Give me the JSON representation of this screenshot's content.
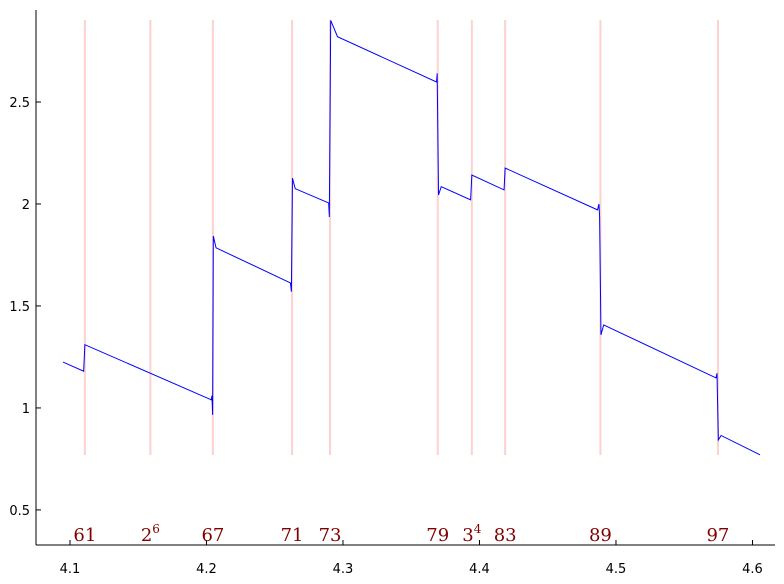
{
  "chart_data": {
    "type": "line",
    "x": [
      4.0949,
      4.11,
      4.1109,
      4.2035,
      4.204,
      4.2045,
      4.205,
      4.207,
      4.2615,
      4.2622,
      4.263,
      4.265,
      4.2895,
      4.29,
      4.291,
      4.296,
      4.3685,
      4.369,
      4.37,
      4.372,
      4.3935,
      4.3944,
      4.418,
      4.4188,
      4.4865,
      4.4875,
      4.488,
      4.489,
      4.491,
      4.5733,
      4.574,
      4.575,
      4.577,
      4.6055
    ],
    "values": [
      1.225,
      1.18,
      1.31,
      1.04,
      1.06,
      0.966,
      1.843,
      1.785,
      1.613,
      1.57,
      2.127,
      2.075,
      2.005,
      1.936,
      2.9,
      2.82,
      2.598,
      2.64,
      2.044,
      2.085,
      2.02,
      2.142,
      2.069,
      2.176,
      1.971,
      2.0,
      1.94,
      1.358,
      1.407,
      1.147,
      1.17,
      0.843,
      0.865,
      0.77
    ],
    "color": "#0000ff",
    "markers": [
      {
        "x": 4.1109,
        "base": "61"
      },
      {
        "x": 4.1589,
        "base": "2",
        "sup": "6"
      },
      {
        "x": 4.2047,
        "base": "67"
      },
      {
        "x": 4.2627,
        "base": "71"
      },
      {
        "x": 4.2905,
        "base": "73"
      },
      {
        "x": 4.3694,
        "base": "79"
      },
      {
        "x": 4.3944,
        "base": "3",
        "sup": "4"
      },
      {
        "x": 4.4188,
        "base": "83"
      },
      {
        "x": 4.4886,
        "base": "89"
      },
      {
        "x": 4.5747,
        "base": "97"
      }
    ],
    "marker_color": "#ffd0d0",
    "label_color": "#800000",
    "xlim": [
      4.0751,
      4.6165
    ],
    "ylim": [
      0.328,
      2.951
    ],
    "xticks": [
      4.1,
      4.2,
      4.3,
      4.4,
      4.5,
      4.6
    ],
    "yticks": [
      0.5,
      1,
      1.5,
      2,
      2.5
    ]
  }
}
